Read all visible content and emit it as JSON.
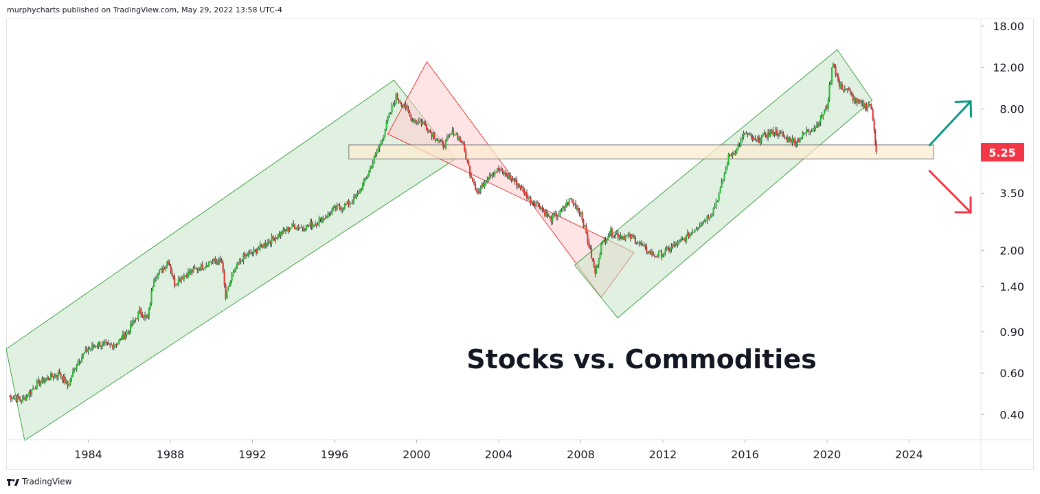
{
  "header": {
    "attribution": "murphycharts published on TradingView.com, May 29, 2022 13:58 UTC-4"
  },
  "footer": {
    "brand": "TradingView",
    "brand_icon": "tradingview-logo-icon"
  },
  "colors": {
    "up": "#26a69a",
    "up_bright": "#2dbd3a",
    "down": "#e53935",
    "channel_green_fill": "#c8e6c9",
    "channel_green_stroke": "#43a047",
    "channel_red_fill": "#ffcdd2",
    "channel_red_stroke": "#e53935",
    "zone_fill": "#fdebd0",
    "zone_stroke": "#757575",
    "price_badge": "#f23645",
    "arrow_up": "#089981",
    "arrow_down": "#f23645"
  },
  "chart_data": {
    "type": "candlestick",
    "title": "Stocks vs. Commodities",
    "scale": "log",
    "ylim": [
      0.3,
      18
    ],
    "xlim": [
      1980.0,
      2027.5
    ],
    "y_ticks": [
      "18.00",
      "12.00",
      "8.00",
      "5.25",
      "3.50",
      "2.00",
      "1.40",
      "0.90",
      "0.60",
      "0.40"
    ],
    "y_tick_values": [
      18,
      12,
      8,
      3.5,
      2,
      1.4,
      0.9,
      0.6,
      0.4
    ],
    "x_ticks": [
      "1984",
      "1988",
      "1992",
      "1996",
      "2000",
      "2004",
      "2008",
      "2012",
      "2016",
      "2020",
      "2024"
    ],
    "x_tick_values": [
      1984,
      1988,
      1992,
      1996,
      2000,
      2004,
      2008,
      2012,
      2016,
      2020,
      2024
    ],
    "last_price": "5.25",
    "last_price_value": 5.25,
    "series": [
      {
        "name": "",
        "points": [
          [
            1980.1,
            0.48
          ],
          [
            1980.8,
            0.46
          ],
          [
            1981.5,
            0.54
          ],
          [
            1982.0,
            0.57
          ],
          [
            1982.6,
            0.6
          ],
          [
            1983.0,
            0.53
          ],
          [
            1983.5,
            0.68
          ],
          [
            1984.0,
            0.76
          ],
          [
            1984.5,
            0.8
          ],
          [
            1985.0,
            0.78
          ],
          [
            1985.5,
            0.82
          ],
          [
            1986.0,
            0.92
          ],
          [
            1986.5,
            1.1
          ],
          [
            1986.9,
            1.02
          ],
          [
            1987.2,
            1.55
          ],
          [
            1987.6,
            1.65
          ],
          [
            1987.9,
            1.82
          ],
          [
            1988.2,
            1.45
          ],
          [
            1988.6,
            1.55
          ],
          [
            1989.0,
            1.62
          ],
          [
            1989.5,
            1.7
          ],
          [
            1990.0,
            1.8
          ],
          [
            1990.5,
            1.78
          ],
          [
            1990.7,
            1.25
          ],
          [
            1991.0,
            1.55
          ],
          [
            1991.5,
            1.85
          ],
          [
            1992.0,
            1.95
          ],
          [
            1992.5,
            2.1
          ],
          [
            1993.0,
            2.25
          ],
          [
            1993.5,
            2.4
          ],
          [
            1994.0,
            2.55
          ],
          [
            1994.5,
            2.5
          ],
          [
            1995.0,
            2.6
          ],
          [
            1995.5,
            2.75
          ],
          [
            1996.0,
            3.0
          ],
          [
            1996.5,
            3.1
          ],
          [
            1997.0,
            3.3
          ],
          [
            1997.5,
            4.0
          ],
          [
            1997.8,
            4.6
          ],
          [
            1998.2,
            5.6
          ],
          [
            1998.6,
            7.2
          ],
          [
            1999.0,
            9.0
          ],
          [
            1999.4,
            8.2
          ],
          [
            1999.8,
            7.2
          ],
          [
            2000.3,
            7.0
          ],
          [
            2000.8,
            6.2
          ],
          [
            2001.3,
            5.6
          ],
          [
            2001.8,
            6.4
          ],
          [
            2002.2,
            5.8
          ],
          [
            2002.6,
            4.3
          ],
          [
            2003.0,
            3.5
          ],
          [
            2003.5,
            4.2
          ],
          [
            2004.0,
            4.4
          ],
          [
            2004.5,
            4.1
          ],
          [
            2005.0,
            3.8
          ],
          [
            2005.5,
            3.3
          ],
          [
            2006.0,
            3.1
          ],
          [
            2006.5,
            2.7
          ],
          [
            2007.0,
            2.9
          ],
          [
            2007.5,
            3.3
          ],
          [
            2008.0,
            2.9
          ],
          [
            2008.4,
            2.1
          ],
          [
            2008.7,
            1.6
          ],
          [
            2009.0,
            2.1
          ],
          [
            2009.4,
            2.4
          ],
          [
            2010.0,
            2.3
          ],
          [
            2010.6,
            2.25
          ],
          [
            2011.2,
            2.0
          ],
          [
            2011.6,
            1.9
          ],
          [
            2012.0,
            1.95
          ],
          [
            2012.6,
            2.1
          ],
          [
            2013.2,
            2.3
          ],
          [
            2013.8,
            2.6
          ],
          [
            2014.4,
            2.9
          ],
          [
            2014.8,
            3.6
          ],
          [
            2015.2,
            5.0
          ],
          [
            2015.6,
            5.4
          ],
          [
            2016.0,
            6.3
          ],
          [
            2016.5,
            5.8
          ],
          [
            2017.0,
            6.2
          ],
          [
            2017.5,
            6.4
          ],
          [
            2018.0,
            6.0
          ],
          [
            2018.5,
            5.8
          ],
          [
            2019.0,
            6.4
          ],
          [
            2019.5,
            6.8
          ],
          [
            2020.0,
            8.2
          ],
          [
            2020.3,
            12.8
          ],
          [
            2020.6,
            10.0
          ],
          [
            2021.0,
            9.6
          ],
          [
            2021.4,
            8.6
          ],
          [
            2021.8,
            8.2
          ],
          [
            2022.1,
            8.4
          ],
          [
            2022.3,
            6.6
          ],
          [
            2022.4,
            5.25
          ]
        ]
      }
    ],
    "annotations": {
      "channels": [
        {
          "color": "green",
          "corners": [
            [
              1980.0,
              0.76
            ],
            [
              1998.9,
              10.6
            ],
            [
              2001.9,
              4.9
            ],
            [
              1980.9,
              0.31
            ]
          ]
        },
        {
          "color": "red",
          "corners": [
            [
              1998.6,
              6.25
            ],
            [
              2000.5,
              12.7
            ],
            [
              2009.0,
              1.26
            ],
            [
              2010.6,
              1.96
            ]
          ]
        },
        {
          "color": "green",
          "corners": [
            [
              2007.7,
              1.73
            ],
            [
              2020.5,
              14.3
            ],
            [
              2022.2,
              8.7
            ],
            [
              2009.8,
              1.03
            ]
          ]
        }
      ],
      "zone": {
        "x0": 1996.7,
        "x1": 2025.2,
        "y0": 4.9,
        "y1": 5.62
      },
      "arrows": [
        {
          "direction": "up",
          "from": [
            2025.0,
            5.6
          ],
          "to": [
            2027.0,
            8.6
          ]
        },
        {
          "direction": "down",
          "from": [
            2025.0,
            4.35
          ],
          "to": [
            2027.0,
            2.9
          ]
        }
      ]
    }
  }
}
